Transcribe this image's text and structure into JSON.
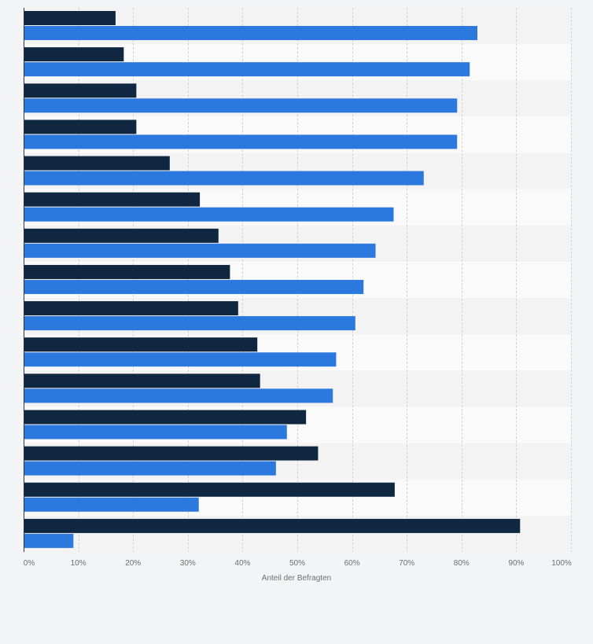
{
  "chart_data": {
    "type": "bar",
    "orientation": "horizontal",
    "xlabel": "Anteil der Befragten",
    "ylabel": "",
    "xlim": [
      0,
      100
    ],
    "x_ticks": [
      "0%",
      "10%",
      "20%",
      "30%",
      "40%",
      "50%",
      "60%",
      "70%",
      "80%",
      "90%",
      "100%"
    ],
    "grid": true,
    "legend": "none",
    "categories": [
      "",
      "",
      "",
      "",
      "",
      "",
      "",
      "",
      "",
      "",
      "",
      "",
      "",
      "",
      ""
    ],
    "series": [
      {
        "color": "#0f2740",
        "values": [
          16.8,
          18.3,
          20.6,
          20.6,
          26.7,
          32.2,
          35.6,
          37.7,
          39.2,
          42.7,
          43.2,
          51.6,
          53.8,
          67.8,
          90.7
        ]
      },
      {
        "color": "#2b79de",
        "values": [
          82.9,
          81.5,
          79.2,
          79.2,
          73.1,
          67.6,
          64.3,
          62.1,
          60.6,
          57.1,
          56.5,
          48.1,
          46.1,
          32.0,
          9.1
        ]
      }
    ],
    "colors": {
      "band_even": "#f3f3f4",
      "band_odd": "#fafafb",
      "grid": "#d3d3d3",
      "axis": "#333333",
      "page_bg": "#f3f4f6"
    }
  }
}
